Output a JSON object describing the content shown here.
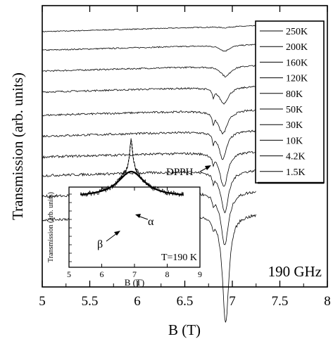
{
  "chart_data": [
    {
      "type": "line",
      "xlabel": "B (T)",
      "ylabel": "Transmission (arb. units)",
      "xlim": [
        5,
        8
      ],
      "xticks": [
        "5",
        "5.5",
        "6",
        "6.5",
        "7",
        "7.5",
        "8"
      ],
      "yticks_labeled": false,
      "frequency_label": "190 GHz",
      "dpph_label": "DPPH",
      "dpph_field": 6.8,
      "legend_position": "top-right",
      "series": [
        {
          "name": "250K",
          "offset": 11.0,
          "center": 6.92,
          "depth": 0.05,
          "width": 0.05
        },
        {
          "name": "200K",
          "offset": 10.2,
          "center": 6.92,
          "depth": 0.25,
          "width": 0.06
        },
        {
          "name": "160K",
          "offset": 9.3,
          "center": 6.93,
          "depth": 0.45,
          "width": 0.06
        },
        {
          "name": "120K",
          "offset": 8.4,
          "center": 6.91,
          "depth": 0.7,
          "width": 0.06
        },
        {
          "name": "80K",
          "offset": 7.4,
          "center": 6.9,
          "depth": 1.0,
          "width": 0.06
        },
        {
          "name": "50K",
          "offset": 6.5,
          "center": 6.9,
          "depth": 1.2,
          "width": 0.05
        },
        {
          "name": "30K",
          "offset": 5.6,
          "center": 6.91,
          "depth": 1.5,
          "width": 0.05
        },
        {
          "name": "10K",
          "offset": 4.8,
          "center": 6.92,
          "depth": 1.8,
          "width": 0.05
        },
        {
          "name": "4.2K",
          "offset": 3.9,
          "center": 6.92,
          "depth": 2.3,
          "width": 0.05
        },
        {
          "name": "1.5K",
          "offset": 2.9,
          "center": 6.93,
          "depth": 4.7,
          "width": 0.04
        }
      ]
    },
    {
      "type": "line",
      "title": "T=190 K",
      "xlabel": "B (T)",
      "ylabel": "Transmission (arb. units)",
      "xlim": [
        5,
        9
      ],
      "xticks": [
        "5",
        "6",
        "7",
        "8",
        "9"
      ],
      "annotations": [
        "β",
        "α"
      ],
      "series": [
        {
          "style": "data",
          "center": 6.9,
          "depth": 0.45,
          "width": 0.5,
          "narrow_center": 6.9,
          "narrow_depth": 0.55,
          "narrow_width": 0.06
        },
        {
          "style": "fit-solid",
          "center": 6.9,
          "depth": 0.45,
          "width": 0.5
        },
        {
          "style": "fit-dashed",
          "center": 6.9,
          "depth": 0.45,
          "width": 0.5,
          "narrow_center": 6.9,
          "narrow_depth": 0.55,
          "narrow_width": 0.06
        }
      ]
    }
  ]
}
